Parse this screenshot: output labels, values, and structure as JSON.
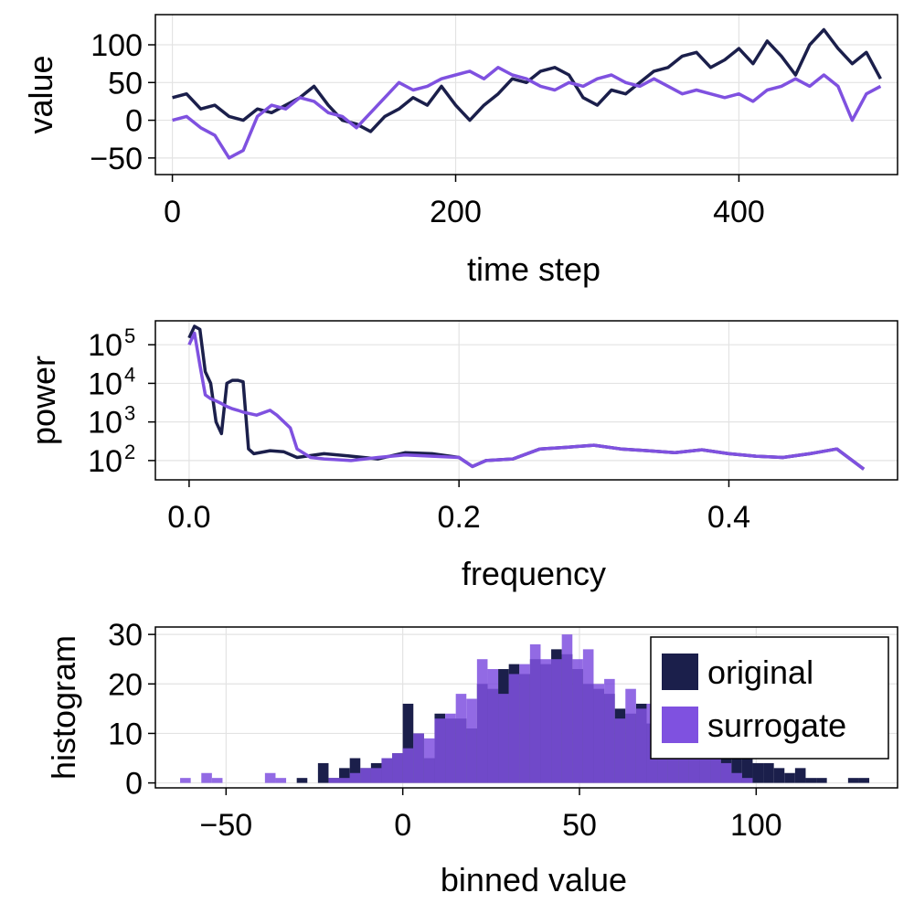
{
  "colors": {
    "original": "#1b1f4b",
    "surrogate": "#7f51e0"
  },
  "chart_data": [
    {
      "type": "line",
      "xlabel": "time step",
      "ylabel": "value",
      "xlim": [
        -12,
        512
      ],
      "ylim": [
        -72,
        140
      ],
      "xticks": [
        0,
        200,
        400
      ],
      "yticks": [
        -50,
        0,
        50,
        100
      ],
      "ytick_labels": [
        "−50",
        "0",
        "50",
        "100"
      ],
      "grid": true,
      "series": [
        {
          "name": "original",
          "x": [
            0,
            10,
            20,
            30,
            40,
            50,
            60,
            70,
            80,
            90,
            100,
            110,
            120,
            130,
            140,
            150,
            160,
            170,
            180,
            190,
            200,
            210,
            220,
            230,
            240,
            250,
            260,
            270,
            280,
            290,
            300,
            310,
            320,
            330,
            340,
            350,
            360,
            370,
            380,
            390,
            400,
            410,
            420,
            430,
            440,
            450,
            460,
            470,
            480,
            490,
            500
          ],
          "values": [
            30,
            35,
            15,
            20,
            5,
            0,
            15,
            10,
            20,
            30,
            45,
            20,
            0,
            -5,
            -15,
            5,
            15,
            30,
            20,
            45,
            20,
            0,
            20,
            35,
            55,
            50,
            65,
            70,
            60,
            30,
            20,
            40,
            35,
            50,
            65,
            70,
            85,
            90,
            70,
            80,
            95,
            75,
            105,
            85,
            60,
            100,
            120,
            95,
            75,
            90,
            55
          ]
        },
        {
          "name": "surrogate",
          "x": [
            0,
            10,
            20,
            30,
            40,
            50,
            60,
            70,
            80,
            90,
            100,
            110,
            120,
            130,
            140,
            150,
            160,
            170,
            180,
            190,
            200,
            210,
            220,
            230,
            240,
            250,
            260,
            270,
            280,
            290,
            300,
            310,
            320,
            330,
            340,
            350,
            360,
            370,
            380,
            390,
            400,
            410,
            420,
            430,
            440,
            450,
            460,
            470,
            480,
            490,
            500
          ],
          "values": [
            0,
            5,
            -10,
            -20,
            -50,
            -40,
            5,
            20,
            15,
            30,
            25,
            10,
            5,
            -10,
            10,
            30,
            50,
            40,
            45,
            55,
            60,
            65,
            55,
            70,
            60,
            55,
            45,
            40,
            50,
            45,
            55,
            60,
            50,
            45,
            55,
            45,
            35,
            40,
            35,
            30,
            35,
            25,
            40,
            45,
            55,
            45,
            60,
            45,
            0,
            35,
            45
          ]
        }
      ]
    },
    {
      "type": "line",
      "xlabel": "frequency",
      "ylabel": "power",
      "xlim": [
        -0.025,
        0.525
      ],
      "log_y": true,
      "ylim_log10": [
        1.5,
        5.62
      ],
      "xticks": [
        0.0,
        0.2,
        0.4
      ],
      "xtick_labels": [
        "0.0",
        "0.2",
        "0.4"
      ],
      "yticks_log10": [
        2,
        3,
        4,
        5
      ],
      "ytick_labels": [
        "10",
        "10",
        "10",
        "10"
      ],
      "ytick_exponents": [
        "2",
        "3",
        "4",
        "5"
      ],
      "grid": true,
      "series": [
        {
          "name": "original",
          "x": [
            0.0,
            0.004,
            0.008,
            0.012,
            0.016,
            0.02,
            0.024,
            0.028,
            0.032,
            0.036,
            0.04,
            0.044,
            0.048,
            0.06,
            0.07,
            0.08,
            0.1,
            0.12,
            0.14,
            0.16,
            0.18,
            0.2,
            0.21,
            0.22,
            0.24,
            0.26,
            0.28,
            0.3,
            0.32,
            0.34,
            0.36,
            0.38,
            0.4,
            0.42,
            0.44,
            0.46,
            0.48,
            0.5
          ],
          "values": [
            150000,
            300000,
            250000,
            20000,
            10000,
            1000,
            500,
            10000,
            12000,
            12000,
            11000,
            200,
            150,
            180,
            170,
            120,
            150,
            130,
            110,
            160,
            150,
            120,
            70,
            100,
            110,
            200,
            220,
            250,
            200,
            180,
            160,
            190,
            150,
            130,
            120,
            150,
            200,
            60
          ]
        },
        {
          "name": "surrogate",
          "x": [
            0.0,
            0.004,
            0.008,
            0.012,
            0.016,
            0.02,
            0.024,
            0.028,
            0.032,
            0.036,
            0.04,
            0.05,
            0.06,
            0.065,
            0.075,
            0.08,
            0.09,
            0.1,
            0.12,
            0.14,
            0.16,
            0.18,
            0.2,
            0.21,
            0.22,
            0.24,
            0.26,
            0.28,
            0.3,
            0.32,
            0.34,
            0.36,
            0.38,
            0.4,
            0.42,
            0.44,
            0.46,
            0.48,
            0.5
          ],
          "values": [
            100000,
            200000,
            30000,
            5000,
            4000,
            3500,
            3000,
            2500,
            2200,
            2000,
            1800,
            1500,
            2000,
            1500,
            700,
            200,
            120,
            110,
            100,
            120,
            140,
            130,
            120,
            70,
            100,
            110,
            200,
            220,
            250,
            200,
            180,
            160,
            190,
            150,
            130,
            120,
            150,
            200,
            60
          ]
        }
      ]
    },
    {
      "type": "bar",
      "xlabel": "binned value",
      "ylabel": "histogram",
      "xlim": [
        -70,
        140
      ],
      "ylim": [
        -1,
        31.5
      ],
      "xticks": [
        -50,
        0,
        50,
        100
      ],
      "xtick_labels": [
        "−50",
        "0",
        "50",
        "100"
      ],
      "yticks": [
        0,
        10,
        20,
        30
      ],
      "grid": true,
      "legend": "top-right",
      "bin_start": -63,
      "bin_width": 3,
      "series": [
        {
          "name": "original",
          "values": [
            0,
            0,
            0,
            0,
            0,
            0,
            0,
            0,
            0,
            0,
            0,
            1,
            0,
            4,
            1,
            3,
            5,
            3,
            4,
            5,
            6,
            16,
            10,
            5,
            14,
            13,
            13,
            11,
            20,
            19,
            23,
            24,
            22,
            25,
            24,
            27,
            26,
            23,
            20,
            19,
            18,
            15,
            14,
            16,
            12,
            16,
            14,
            13,
            9,
            9,
            8,
            5,
            6,
            5,
            4,
            4,
            3,
            2,
            3,
            1,
            1,
            0,
            0,
            1,
            1
          ]
        },
        {
          "name": "surrogate",
          "values": [
            1,
            0,
            2,
            1,
            0,
            0,
            0,
            0,
            2,
            1,
            0,
            0,
            0,
            0,
            1,
            1,
            2,
            3,
            3,
            5,
            6,
            7,
            10,
            9,
            13,
            14,
            18,
            17,
            25,
            23,
            18,
            22,
            24,
            28,
            25,
            25,
            30,
            25,
            27,
            20,
            21,
            13,
            19,
            15,
            16,
            18,
            12,
            9,
            8,
            7,
            6,
            4,
            2,
            1,
            0,
            0,
            0,
            0,
            0,
            0,
            0,
            0,
            0,
            0,
            0
          ]
        }
      ]
    }
  ]
}
